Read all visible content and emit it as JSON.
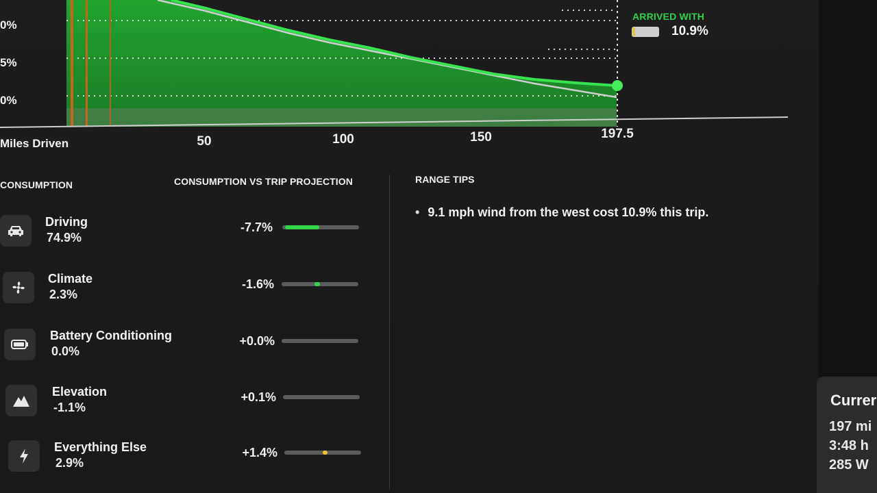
{
  "chart": {
    "y_tick_labels": [
      "0%",
      "5%",
      "0%"
    ],
    "x_axis_title": "Miles Driven",
    "x_tick_labels": [
      "50",
      "100",
      "150",
      "197.5"
    ],
    "arrived_title": "ARRIVED WITH",
    "arrived_value": "10.9%",
    "arrived_battery_level": 0.109,
    "colors": {
      "actual": "#39e34f",
      "fill": "#1f9a2b",
      "projection": "#cfcfcf",
      "marker": "#c8651d"
    }
  },
  "consumption": {
    "header": "CONSUMPTION",
    "projection_header": "CONSUMPTION VS TRIP PROJECTION",
    "items": [
      {
        "icon": "car-icon",
        "label": "Driving",
        "share": "74.9%",
        "delta": "-7.7%",
        "bar_color": "#36d64a"
      },
      {
        "icon": "fan-icon",
        "label": "Climate",
        "share": "2.3%",
        "delta": "-1.6%",
        "bar_color": "#36d64a"
      },
      {
        "icon": "battery-icon",
        "label": "Battery Conditioning",
        "share": "0.0%",
        "delta": "+0.0%",
        "bar_color": "#5b5c5e"
      },
      {
        "icon": "mountain-icon",
        "label": "Elevation",
        "share": "-1.1%",
        "delta": "+0.1%",
        "bar_color": "#5b5c5e"
      },
      {
        "icon": "lightning-icon",
        "label": "Everything Else",
        "share": "2.9%",
        "delta": "+1.4%",
        "bar_color": "#f0c02e"
      }
    ]
  },
  "range_tips": {
    "header": "RANGE TIPS",
    "tips": [
      "9.1 mph wind from the west cost 10.9% this trip."
    ]
  },
  "side_card": {
    "title": "Currer",
    "lines": [
      "197 mi",
      "3:48 h",
      "285 W"
    ]
  }
}
